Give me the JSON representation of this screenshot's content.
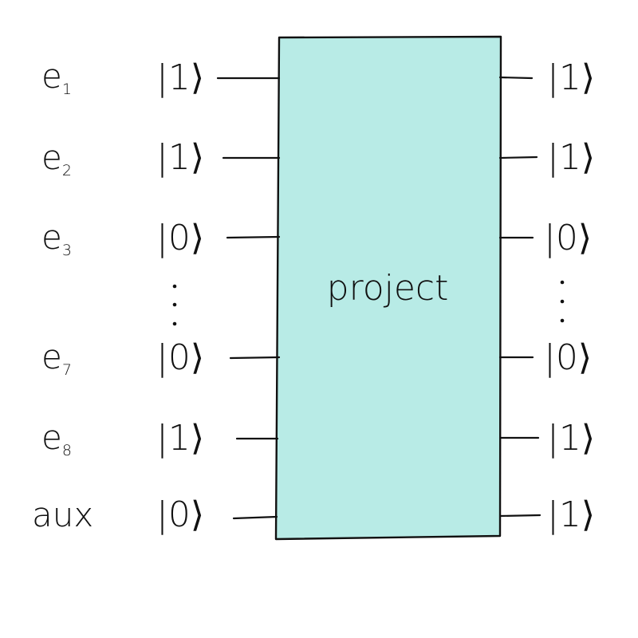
{
  "gate": {
    "label": "project",
    "fill": "#b8ebe6"
  },
  "rows": [
    {
      "reg": "e",
      "sub": "1",
      "in": "|1⟩",
      "out": "|1⟩"
    },
    {
      "reg": "e",
      "sub": "2",
      "in": "|1⟩",
      "out": "|1⟩"
    },
    {
      "reg": "e",
      "sub": "3",
      "in": "|0⟩",
      "out": "|0⟩"
    },
    {
      "reg": "e",
      "sub": "7",
      "in": "|0⟩",
      "out": "|0⟩"
    },
    {
      "reg": "e",
      "sub": "8",
      "in": "|1⟩",
      "out": "|1⟩"
    },
    {
      "reg": "aux",
      "sub": "",
      "in": "|0⟩",
      "out": "|1⟩"
    }
  ],
  "ellipsis": {
    "left": "⋮",
    "right": "⋮"
  }
}
